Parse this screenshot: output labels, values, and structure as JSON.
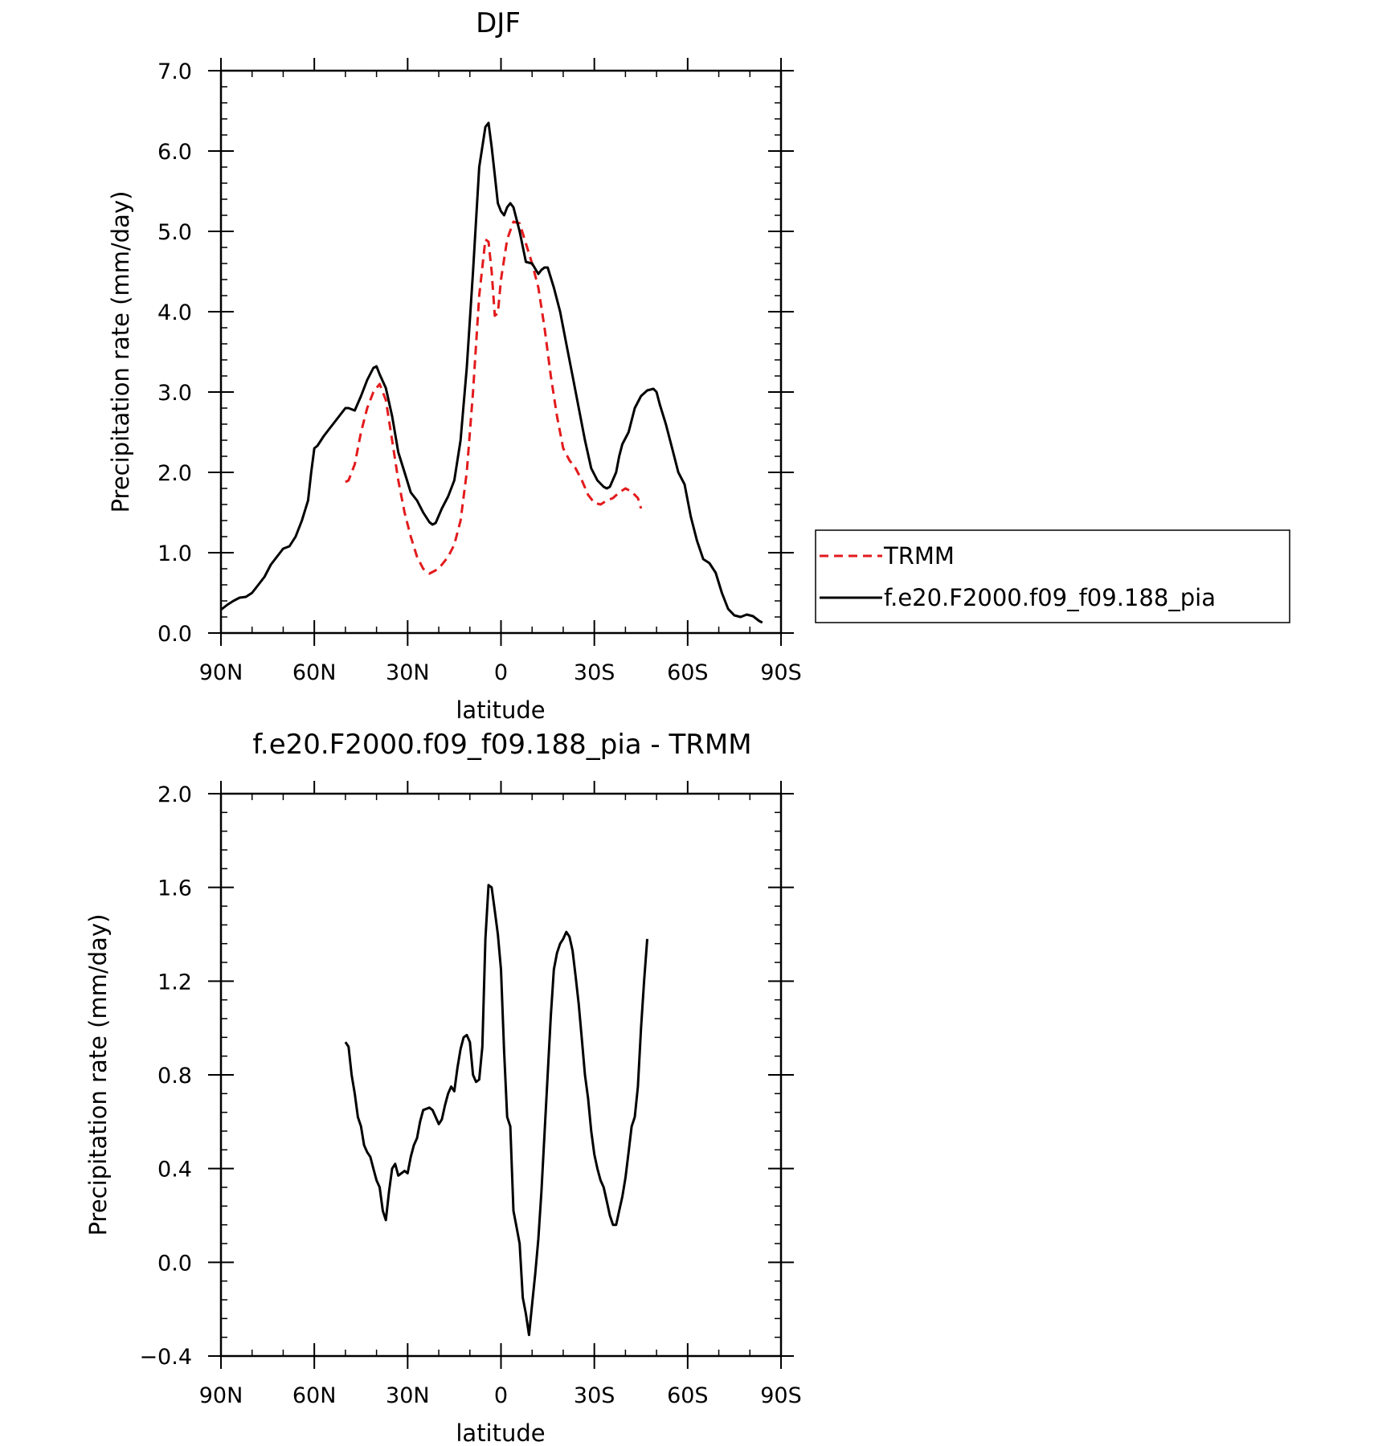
{
  "chart_data": [
    {
      "type": "line",
      "title": "DJF",
      "xlabel": "latitude",
      "ylabel": "Precipitation rate (mm/day)",
      "xlim": [
        90,
        -90
      ],
      "ylim": [
        0.0,
        7.0
      ],
      "x_ticks": [
        {
          "value": 90,
          "label": "90N"
        },
        {
          "value": 60,
          "label": "60N"
        },
        {
          "value": 30,
          "label": "30N"
        },
        {
          "value": 0,
          "label": "0"
        },
        {
          "value": -30,
          "label": "30S"
        },
        {
          "value": -60,
          "label": "60S"
        },
        {
          "value": -90,
          "label": "90S"
        }
      ],
      "y_ticks": [
        {
          "value": 0.0,
          "label": "0.0"
        },
        {
          "value": 1.0,
          "label": "1.0"
        },
        {
          "value": 2.0,
          "label": "2.0"
        },
        {
          "value": 3.0,
          "label": "3.0"
        },
        {
          "value": 4.0,
          "label": "4.0"
        },
        {
          "value": 5.0,
          "label": "5.0"
        },
        {
          "value": 6.0,
          "label": "6.0"
        },
        {
          "value": 7.0,
          "label": "7.0"
        }
      ],
      "legend_position": "right",
      "series": [
        {
          "name": "TRMM",
          "color": "#e31a1c",
          "dash": "dashed",
          "points": [
            [
              50,
              1.88
            ],
            [
              49,
              1.9
            ],
            [
              47,
              2.1
            ],
            [
              45,
              2.5
            ],
            [
              43,
              2.8
            ],
            [
              41,
              3.0
            ],
            [
              39,
              3.1
            ],
            [
              37,
              2.9
            ],
            [
              35,
              2.4
            ],
            [
              33,
              1.9
            ],
            [
              31,
              1.5
            ],
            [
              29,
              1.2
            ],
            [
              27,
              0.95
            ],
            [
              25,
              0.8
            ],
            [
              23,
              0.74
            ],
            [
              21,
              0.78
            ],
            [
              19,
              0.85
            ],
            [
              17,
              0.95
            ],
            [
              15,
              1.1
            ],
            [
              13,
              1.4
            ],
            [
              11,
              2.0
            ],
            [
              9,
              3.0
            ],
            [
              7,
              4.2
            ],
            [
              5,
              4.9
            ],
            [
              4,
              4.87
            ],
            [
              3,
              4.5
            ],
            [
              2,
              3.95
            ],
            [
              1,
              3.98
            ],
            [
              0,
              4.4
            ],
            [
              -2,
              4.9
            ],
            [
              -4,
              5.12
            ],
            [
              -6,
              5.1
            ],
            [
              -8,
              4.85
            ],
            [
              -10,
              4.6
            ],
            [
              -12,
              4.3
            ],
            [
              -14,
              3.8
            ],
            [
              -16,
              3.2
            ],
            [
              -18,
              2.7
            ],
            [
              -20,
              2.3
            ],
            [
              -22,
              2.15
            ],
            [
              -24,
              2.05
            ],
            [
              -26,
              1.9
            ],
            [
              -28,
              1.72
            ],
            [
              -30,
              1.62
            ],
            [
              -32,
              1.6
            ],
            [
              -34,
              1.65
            ],
            [
              -36,
              1.68
            ],
            [
              -38,
              1.75
            ],
            [
              -40,
              1.8
            ],
            [
              -42,
              1.76
            ],
            [
              -44,
              1.68
            ],
            [
              -45,
              1.55
            ]
          ]
        },
        {
          "name": "f.e20.F2000.f09_f09.188_pia",
          "color": "#000000",
          "dash": "solid",
          "points": [
            [
              90,
              0.29
            ],
            [
              88,
              0.35
            ],
            [
              86,
              0.4
            ],
            [
              84,
              0.44
            ],
            [
              82,
              0.45
            ],
            [
              80,
              0.5
            ],
            [
              78,
              0.6
            ],
            [
              76,
              0.7
            ],
            [
              74,
              0.85
            ],
            [
              72,
              0.95
            ],
            [
              70,
              1.05
            ],
            [
              68,
              1.08
            ],
            [
              66,
              1.2
            ],
            [
              64,
              1.4
            ],
            [
              62,
              1.65
            ],
            [
              61,
              2.0
            ],
            [
              60,
              2.3
            ],
            [
              59,
              2.33
            ],
            [
              57,
              2.45
            ],
            [
              55,
              2.55
            ],
            [
              53,
              2.65
            ],
            [
              51,
              2.75
            ],
            [
              50,
              2.8
            ],
            [
              49,
              2.8
            ],
            [
              47,
              2.77
            ],
            [
              45,
              2.95
            ],
            [
              43,
              3.15
            ],
            [
              41,
              3.3
            ],
            [
              40,
              3.32
            ],
            [
              39,
              3.22
            ],
            [
              37,
              3.05
            ],
            [
              35,
              2.7
            ],
            [
              33,
              2.25
            ],
            [
              31,
              2.0
            ],
            [
              29,
              1.75
            ],
            [
              27,
              1.65
            ],
            [
              25,
              1.5
            ],
            [
              23,
              1.38
            ],
            [
              22,
              1.35
            ],
            [
              21,
              1.37
            ],
            [
              19,
              1.55
            ],
            [
              17,
              1.7
            ],
            [
              15,
              1.9
            ],
            [
              13,
              2.4
            ],
            [
              11,
              3.3
            ],
            [
              9,
              4.5
            ],
            [
              7,
              5.8
            ],
            [
              5,
              6.3
            ],
            [
              4,
              6.35
            ],
            [
              3,
              6.05
            ],
            [
              2,
              5.7
            ],
            [
              1,
              5.35
            ],
            [
              0,
              5.25
            ],
            [
              -1,
              5.2
            ],
            [
              -2,
              5.3
            ],
            [
              -3,
              5.35
            ],
            [
              -4,
              5.3
            ],
            [
              -6,
              5.0
            ],
            [
              -8,
              4.62
            ],
            [
              -10,
              4.6
            ],
            [
              -12,
              4.47
            ],
            [
              -13,
              4.52
            ],
            [
              -14,
              4.55
            ],
            [
              -15,
              4.55
            ],
            [
              -17,
              4.3
            ],
            [
              -19,
              4.0
            ],
            [
              -21,
              3.6
            ],
            [
              -23,
              3.2
            ],
            [
              -25,
              2.8
            ],
            [
              -27,
              2.4
            ],
            [
              -29,
              2.05
            ],
            [
              -31,
              1.9
            ],
            [
              -33,
              1.82
            ],
            [
              -34,
              1.8
            ],
            [
              -35,
              1.82
            ],
            [
              -37,
              2.0
            ],
            [
              -38,
              2.2
            ],
            [
              -39,
              2.35
            ],
            [
              -41,
              2.5
            ],
            [
              -43,
              2.8
            ],
            [
              -45,
              2.95
            ],
            [
              -47,
              3.02
            ],
            [
              -49,
              3.04
            ],
            [
              -50,
              3.0
            ],
            [
              -51,
              2.85
            ],
            [
              -53,
              2.6
            ],
            [
              -55,
              2.3
            ],
            [
              -57,
              2.0
            ],
            [
              -59,
              1.85
            ],
            [
              -61,
              1.45
            ],
            [
              -63,
              1.15
            ],
            [
              -65,
              0.92
            ],
            [
              -67,
              0.87
            ],
            [
              -69,
              0.75
            ],
            [
              -71,
              0.5
            ],
            [
              -73,
              0.3
            ],
            [
              -75,
              0.22
            ],
            [
              -77,
              0.2
            ],
            [
              -79,
              0.23
            ],
            [
              -81,
              0.21
            ],
            [
              -83,
              0.15
            ],
            [
              -84,
              0.13
            ]
          ]
        }
      ]
    },
    {
      "type": "line",
      "title": "f.e20.F2000.f09_f09.188_pia - TRMM",
      "xlabel": "latitude",
      "ylabel": "Precipitation rate (mm/day)",
      "xlim": [
        90,
        -90
      ],
      "ylim": [
        -0.4,
        2.0
      ],
      "x_ticks": [
        {
          "value": 90,
          "label": "90N"
        },
        {
          "value": 60,
          "label": "60N"
        },
        {
          "value": 30,
          "label": "30N"
        },
        {
          "value": 0,
          "label": "0"
        },
        {
          "value": -30,
          "label": "30S"
        },
        {
          "value": -60,
          "label": "60S"
        },
        {
          "value": -90,
          "label": "90S"
        }
      ],
      "y_ticks": [
        {
          "value": -0.4,
          "label": "−0.4"
        },
        {
          "value": 0.0,
          "label": "0.0"
        },
        {
          "value": 0.4,
          "label": "0.4"
        },
        {
          "value": 0.8,
          "label": "0.8"
        },
        {
          "value": 1.2,
          "label": "1.2"
        },
        {
          "value": 1.6,
          "label": "1.6"
        },
        {
          "value": 2.0,
          "label": "2.0"
        }
      ],
      "series": [
        {
          "color": "#000000",
          "dash": "solid",
          "points": [
            [
              50,
              0.94
            ],
            [
              49,
              0.92
            ],
            [
              48,
              0.8
            ],
            [
              47,
              0.72
            ],
            [
              46,
              0.62
            ],
            [
              45,
              0.58
            ],
            [
              44,
              0.5
            ],
            [
              43,
              0.47
            ],
            [
              42,
              0.45
            ],
            [
              41,
              0.4
            ],
            [
              40,
              0.35
            ],
            [
              39,
              0.32
            ],
            [
              38,
              0.22
            ],
            [
              37,
              0.18
            ],
            [
              36,
              0.3
            ],
            [
              35,
              0.4
            ],
            [
              34,
              0.42
            ],
            [
              33,
              0.37
            ],
            [
              32,
              0.38
            ],
            [
              31,
              0.39
            ],
            [
              30,
              0.38
            ],
            [
              29,
              0.45
            ],
            [
              28,
              0.5
            ],
            [
              27,
              0.53
            ],
            [
              26,
              0.6
            ],
            [
              25,
              0.65
            ],
            [
              23,
              0.66
            ],
            [
              22,
              0.65
            ],
            [
              21,
              0.62
            ],
            [
              20,
              0.59
            ],
            [
              19,
              0.61
            ],
            [
              18,
              0.67
            ],
            [
              17,
              0.72
            ],
            [
              16,
              0.75
            ],
            [
              15,
              0.73
            ],
            [
              14,
              0.83
            ],
            [
              13,
              0.91
            ],
            [
              12,
              0.96
            ],
            [
              11,
              0.97
            ],
            [
              10,
              0.94
            ],
            [
              9,
              0.8
            ],
            [
              8,
              0.77
            ],
            [
              7,
              0.78
            ],
            [
              6,
              0.92
            ],
            [
              5,
              1.38
            ],
            [
              4,
              1.61
            ],
            [
              3,
              1.6
            ],
            [
              2,
              1.5
            ],
            [
              1,
              1.4
            ],
            [
              0,
              1.25
            ],
            [
              -1,
              0.9
            ],
            [
              -2,
              0.62
            ],
            [
              -3,
              0.58
            ],
            [
              -4,
              0.22
            ],
            [
              -5,
              0.15
            ],
            [
              -6,
              0.08
            ],
            [
              -7,
              -0.15
            ],
            [
              -8,
              -0.22
            ],
            [
              -9,
              -0.31
            ],
            [
              -10,
              -0.18
            ],
            [
              -11,
              -0.05
            ],
            [
              -12,
              0.1
            ],
            [
              -13,
              0.3
            ],
            [
              -14,
              0.55
            ],
            [
              -15,
              0.8
            ],
            [
              -16,
              1.05
            ],
            [
              -17,
              1.25
            ],
            [
              -18,
              1.32
            ],
            [
              -19,
              1.36
            ],
            [
              -20,
              1.38
            ],
            [
              -21,
              1.41
            ],
            [
              -22,
              1.39
            ],
            [
              -23,
              1.33
            ],
            [
              -24,
              1.22
            ],
            [
              -25,
              1.1
            ],
            [
              -26,
              0.95
            ],
            [
              -27,
              0.8
            ],
            [
              -28,
              0.7
            ],
            [
              -29,
              0.56
            ],
            [
              -30,
              0.46
            ],
            [
              -31,
              0.4
            ],
            [
              -32,
              0.35
            ],
            [
              -33,
              0.32
            ],
            [
              -34,
              0.26
            ],
            [
              -35,
              0.2
            ],
            [
              -36,
              0.16
            ],
            [
              -37,
              0.16
            ],
            [
              -38,
              0.22
            ],
            [
              -39,
              0.28
            ],
            [
              -40,
              0.36
            ],
            [
              -41,
              0.47
            ],
            [
              -42,
              0.58
            ],
            [
              -43,
              0.62
            ],
            [
              -44,
              0.75
            ],
            [
              -45,
              1.0
            ],
            [
              -46,
              1.2
            ],
            [
              -47,
              1.38
            ]
          ]
        }
      ]
    }
  ]
}
